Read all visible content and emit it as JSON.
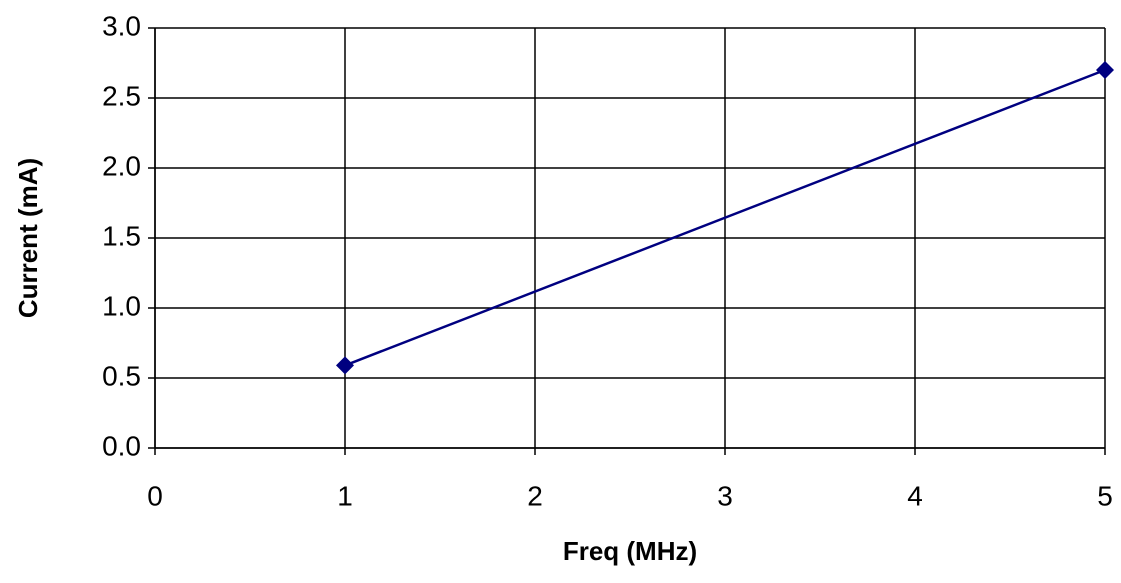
{
  "chart_data": {
    "type": "line",
    "x": [
      1,
      5
    ],
    "values": [
      0.59,
      2.7
    ],
    "color": "#000080",
    "xlabel": "Freq (MHz)",
    "ylabel": "Current (mA)",
    "xlim": [
      0,
      5
    ],
    "xticks": [
      0,
      1,
      2,
      3,
      4,
      5
    ],
    "ylim": [
      0,
      3
    ],
    "yticks": [
      {
        "value": 0,
        "label": "0.0"
      },
      {
        "value": 0.5,
        "label": "0.5"
      },
      {
        "value": 1,
        "label": "1.0"
      },
      {
        "value": 1.5,
        "label": "1.5"
      },
      {
        "value": 2,
        "label": "2.0"
      },
      {
        "value": 2.5,
        "label": "2.5"
      },
      {
        "value": 3,
        "label": "3.0"
      }
    ],
    "grid": true
  }
}
